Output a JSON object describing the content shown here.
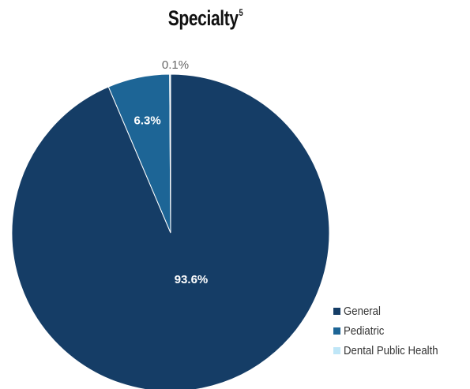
{
  "chart_data": {
    "type": "pie",
    "title": "Specialty",
    "title_superscript": "5",
    "slices": [
      {
        "name": "General",
        "value": 93.6,
        "label": "93.6%",
        "color": "#153d66",
        "label_color": "#ffffff"
      },
      {
        "name": "Pediatric",
        "value": 6.3,
        "label": "6.3%",
        "color": "#1d6596",
        "label_color": "#ffffff"
      },
      {
        "name": "Dental Public Health",
        "value": 0.1,
        "label": "0.1%",
        "color": "#bfe6f7",
        "label_color": "#666666"
      }
    ],
    "legend_placement": "bottom-right"
  },
  "colors": {
    "general": "#153d66",
    "pediatric": "#1d6596",
    "dental_public_health": "#bfe6f7"
  }
}
